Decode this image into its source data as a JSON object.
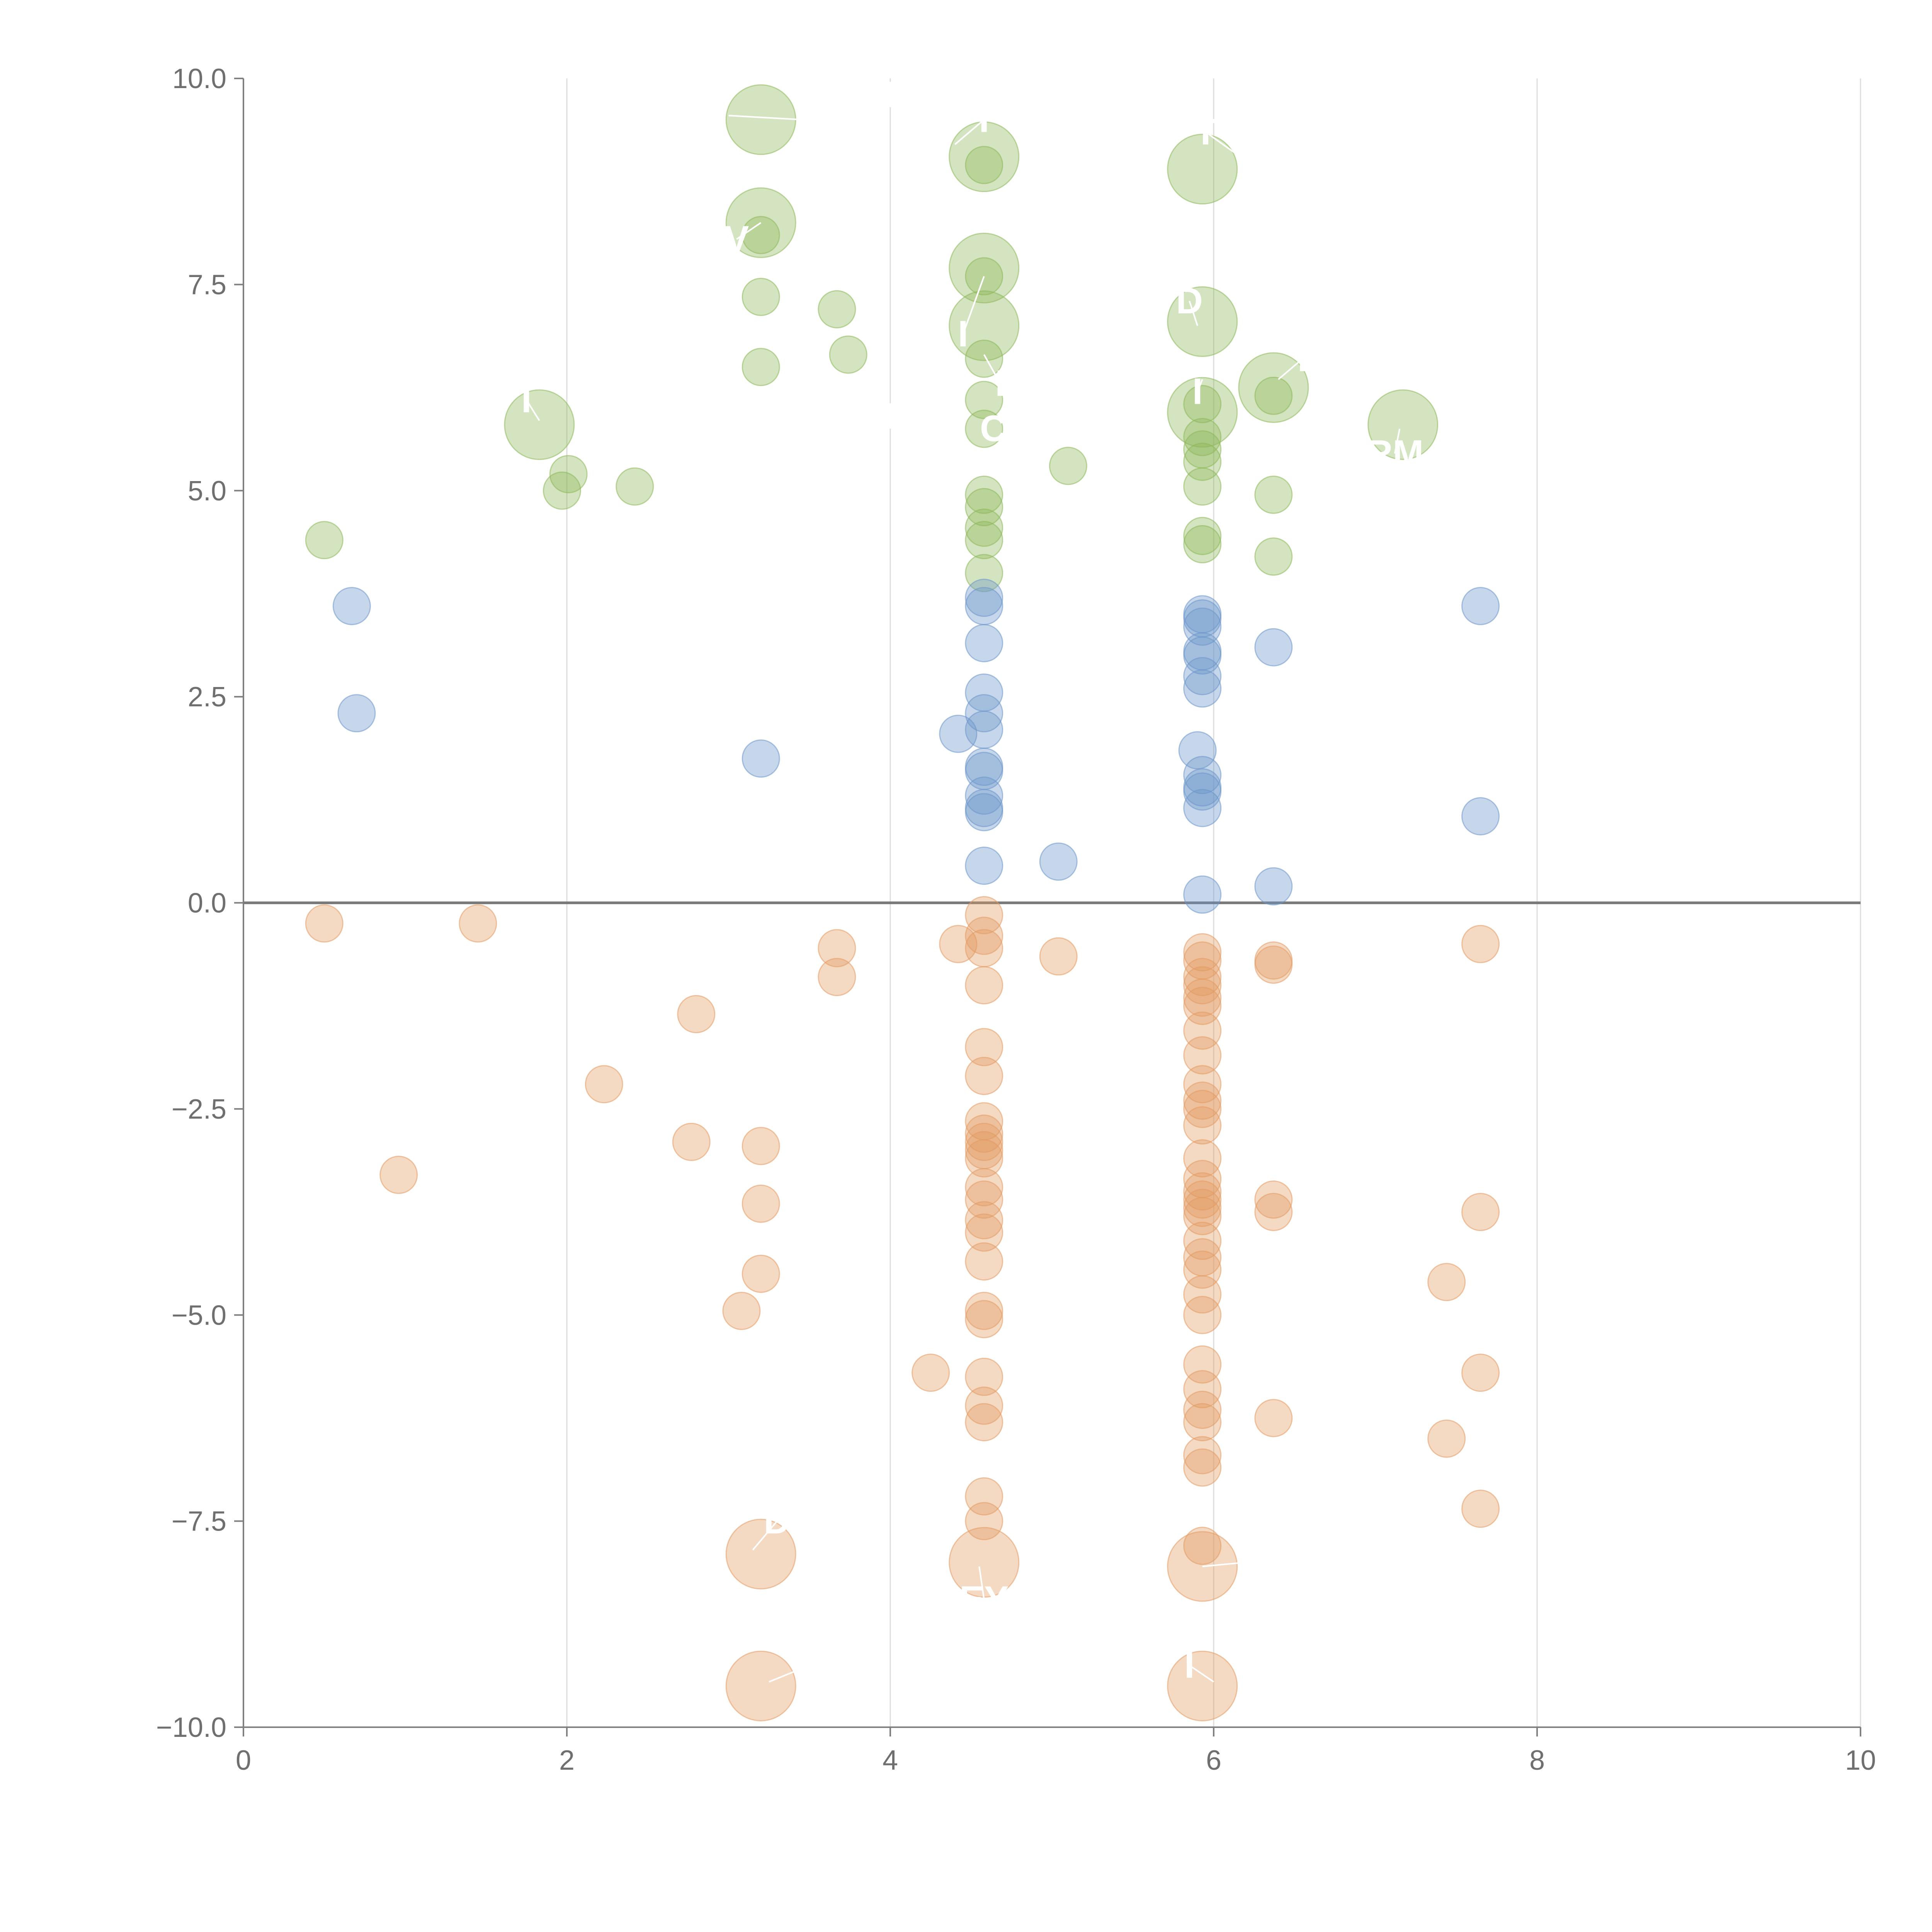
{
  "chart_data": {
    "type": "scatter",
    "variant": "bubble",
    "title": "",
    "xlabel": "",
    "ylabel": "",
    "xlim": [
      0,
      10
    ],
    "ylim": [
      -10,
      10
    ],
    "x_ticks": [
      0,
      2,
      4,
      6,
      8,
      10
    ],
    "x_tick_labels": [
      "0",
      "2",
      "4",
      "6",
      "8",
      "10"
    ],
    "y_ticks": [
      10,
      7.5,
      5,
      2.5,
      0,
      -2.5,
      -5,
      -7.5,
      -10
    ],
    "y_tick_labels": [
      "10.0",
      "7.5",
      "5.0",
      "2.5",
      "0.0",
      "−2.5",
      "−5.0",
      "−7.5",
      "−10.0"
    ],
    "vertical_grid": true,
    "zero_line": true,
    "legend": "none",
    "series": [
      {
        "name": "green",
        "color": "#8db85a",
        "points": [
          [
            0.5,
            4.4,
            1
          ],
          [
            1.97,
            5.0,
            1
          ],
          [
            2.01,
            5.2,
            1
          ],
          [
            2.42,
            5.05,
            1
          ],
          [
            1.83,
            5.8,
            2.2
          ],
          [
            3.2,
            6.5,
            1
          ],
          [
            3.2,
            7.35,
            1
          ],
          [
            3.2,
            8.1,
            1
          ],
          [
            3.2,
            8.25,
            2.2
          ],
          [
            3.2,
            9.5,
            2.2
          ],
          [
            3.67,
            7.2,
            1
          ],
          [
            3.74,
            6.65,
            1
          ],
          [
            4.58,
            9.05,
            2.2
          ],
          [
            4.58,
            8.95,
            1
          ],
          [
            4.58,
            7.7,
            2.2
          ],
          [
            4.58,
            7.6,
            1
          ],
          [
            4.58,
            7.0,
            2.2
          ],
          [
            4.58,
            6.6,
            1
          ],
          [
            4.58,
            6.1,
            1
          ],
          [
            4.58,
            5.75,
            1
          ],
          [
            4.58,
            4.95,
            1
          ],
          [
            4.58,
            4.8,
            1
          ],
          [
            4.58,
            4.55,
            1
          ],
          [
            4.58,
            4.4,
            1
          ],
          [
            4.58,
            4.0,
            1
          ],
          [
            5.1,
            5.3,
            1
          ],
          [
            5.93,
            8.9,
            2.2
          ],
          [
            5.93,
            7.05,
            2.2
          ],
          [
            5.93,
            5.95,
            2.2
          ],
          [
            5.93,
            6.05,
            1
          ],
          [
            5.93,
            5.65,
            1
          ],
          [
            5.93,
            5.5,
            1
          ],
          [
            5.93,
            5.35,
            1
          ],
          [
            5.93,
            5.05,
            1
          ],
          [
            5.93,
            4.45,
            1
          ],
          [
            5.93,
            4.35,
            1
          ],
          [
            6.37,
            6.25,
            2.2
          ],
          [
            6.37,
            6.15,
            1
          ],
          [
            6.37,
            4.95,
            1
          ],
          [
            6.37,
            4.2,
            1
          ],
          [
            7.17,
            5.8,
            2.2
          ]
        ]
      },
      {
        "name": "blue",
        "color": "#6b96cb",
        "points": [
          [
            0.67,
            3.6,
            1
          ],
          [
            0.7,
            2.3,
            1
          ],
          [
            3.2,
            1.75,
            1
          ],
          [
            4.42,
            2.05,
            1
          ],
          [
            4.58,
            3.7,
            1
          ],
          [
            4.58,
            3.6,
            1
          ],
          [
            4.58,
            3.15,
            1
          ],
          [
            4.58,
            2.55,
            1
          ],
          [
            4.58,
            2.3,
            1
          ],
          [
            4.58,
            2.1,
            1
          ],
          [
            4.58,
            1.65,
            1
          ],
          [
            4.58,
            1.6,
            1
          ],
          [
            4.58,
            1.3,
            1
          ],
          [
            4.58,
            1.15,
            1
          ],
          [
            4.58,
            1.1,
            1
          ],
          [
            4.58,
            0.45,
            1
          ],
          [
            5.04,
            0.5,
            1
          ],
          [
            5.93,
            3.5,
            1
          ],
          [
            5.93,
            3.45,
            1
          ],
          [
            5.93,
            3.35,
            1
          ],
          [
            5.93,
            3.05,
            1
          ],
          [
            5.93,
            3.0,
            1
          ],
          [
            5.93,
            2.75,
            1
          ],
          [
            5.93,
            2.6,
            1
          ],
          [
            5.9,
            1.85,
            1
          ],
          [
            5.93,
            1.55,
            1
          ],
          [
            5.93,
            1.4,
            1
          ],
          [
            5.93,
            1.35,
            1
          ],
          [
            5.93,
            1.15,
            1
          ],
          [
            5.93,
            0.1,
            1
          ],
          [
            6.37,
            3.1,
            1
          ],
          [
            6.37,
            0.2,
            1
          ],
          [
            7.65,
            3.6,
            1
          ],
          [
            7.65,
            1.05,
            1
          ]
        ]
      },
      {
        "name": "orange",
        "color": "#e39b62",
        "points": [
          [
            0.5,
            -0.25,
            1
          ],
          [
            1.45,
            -0.25,
            1
          ],
          [
            0.96,
            -3.3,
            1
          ],
          [
            2.23,
            -2.2,
            1
          ],
          [
            2.77,
            -2.9,
            1
          ],
          [
            2.8,
            -1.35,
            1
          ],
          [
            3.08,
            -4.95,
            1
          ],
          [
            3.2,
            -2.95,
            1
          ],
          [
            3.2,
            -3.65,
            1
          ],
          [
            3.2,
            -4.5,
            1
          ],
          [
            3.2,
            -7.9,
            2.2
          ],
          [
            3.2,
            -9.5,
            2.2
          ],
          [
            3.67,
            -0.55,
            1
          ],
          [
            3.67,
            -0.9,
            1
          ],
          [
            4.25,
            -5.7,
            1
          ],
          [
            4.42,
            -0.5,
            1
          ],
          [
            4.58,
            -0.15,
            1
          ],
          [
            4.58,
            -0.4,
            1
          ],
          [
            4.58,
            -0.55,
            1
          ],
          [
            4.58,
            -1.0,
            1
          ],
          [
            4.58,
            -1.75,
            1
          ],
          [
            4.58,
            -2.1,
            1
          ],
          [
            4.58,
            -2.65,
            1
          ],
          [
            4.58,
            -2.8,
            1
          ],
          [
            4.58,
            -2.9,
            1
          ],
          [
            4.58,
            -3.0,
            1
          ],
          [
            4.58,
            -3.1,
            1
          ],
          [
            4.58,
            -3.45,
            1
          ],
          [
            4.58,
            -3.6,
            1
          ],
          [
            4.58,
            -3.85,
            1
          ],
          [
            4.58,
            -4.0,
            1
          ],
          [
            4.58,
            -4.35,
            1
          ],
          [
            4.58,
            -4.95,
            1
          ],
          [
            4.58,
            -5.05,
            1
          ],
          [
            4.58,
            -5.75,
            1
          ],
          [
            4.58,
            -6.1,
            1
          ],
          [
            4.58,
            -6.3,
            1
          ],
          [
            4.58,
            -7.2,
            1
          ],
          [
            4.58,
            -7.5,
            1
          ],
          [
            4.58,
            -8.0,
            2.2
          ],
          [
            5.04,
            -0.65,
            1
          ],
          [
            5.93,
            -0.6,
            1
          ],
          [
            5.93,
            -0.7,
            1
          ],
          [
            5.93,
            -0.9,
            1
          ],
          [
            5.93,
            -1.0,
            1
          ],
          [
            5.93,
            -1.15,
            1
          ],
          [
            5.93,
            -1.25,
            1
          ],
          [
            5.93,
            -1.55,
            1
          ],
          [
            5.93,
            -1.85,
            1
          ],
          [
            5.93,
            -2.2,
            1
          ],
          [
            5.93,
            -2.4,
            1
          ],
          [
            5.93,
            -2.5,
            1
          ],
          [
            5.93,
            -2.7,
            1
          ],
          [
            5.93,
            -3.1,
            1
          ],
          [
            5.93,
            -3.35,
            1
          ],
          [
            5.93,
            -3.5,
            1
          ],
          [
            5.93,
            -3.6,
            1
          ],
          [
            5.93,
            -3.7,
            1
          ],
          [
            5.93,
            -3.8,
            1
          ],
          [
            5.93,
            -4.1,
            1
          ],
          [
            5.93,
            -4.3,
            1
          ],
          [
            5.93,
            -4.45,
            1
          ],
          [
            5.93,
            -4.75,
            1
          ],
          [
            5.93,
            -5.0,
            1
          ],
          [
            5.93,
            -5.6,
            1
          ],
          [
            5.93,
            -5.9,
            1
          ],
          [
            5.93,
            -6.15,
            1
          ],
          [
            5.93,
            -6.3,
            1
          ],
          [
            5.93,
            -6.7,
            1
          ],
          [
            5.93,
            -6.85,
            1
          ],
          [
            5.93,
            -7.8,
            1
          ],
          [
            5.93,
            -8.05,
            2.2
          ],
          [
            5.93,
            -9.5,
            2.2
          ],
          [
            6.37,
            -0.7,
            1
          ],
          [
            6.37,
            -0.75,
            1
          ],
          [
            6.37,
            -3.6,
            1
          ],
          [
            6.37,
            -3.75,
            1
          ],
          [
            6.37,
            -6.25,
            1
          ],
          [
            7.44,
            -4.6,
            1
          ],
          [
            7.44,
            -6.5,
            1
          ],
          [
            7.65,
            -0.5,
            1
          ],
          [
            7.65,
            -3.75,
            1
          ],
          [
            7.65,
            -5.7,
            1
          ],
          [
            7.65,
            -7.35,
            1
          ]
        ]
      }
    ],
    "annotations": [
      {
        "text": "I",
        "x": 3.45,
        "y": 9.5,
        "px": 3.0,
        "py": 9.55
      },
      {
        "text": "I",
        "x": 4.0,
        "y": 9.8
      },
      {
        "text": "I",
        "x": 4.58,
        "y": 9.5,
        "px": 4.4,
        "py": 9.2
      },
      {
        "text": "T",
        "x": 5.95,
        "y": 9.35,
        "px": 6.2,
        "py": 9.0
      },
      {
        "text": "V",
        "x": 3.05,
        "y": 8.05,
        "px": 3.2,
        "py": 8.25
      },
      {
        "text": "D",
        "x": 5.85,
        "y": 7.3,
        "px": 5.9,
        "py": 7.0
      },
      {
        "text": "I",
        "x": 4.45,
        "y": 6.9,
        "px": 4.58,
        "py": 7.6
      },
      {
        "text": "I",
        "x": 4.68,
        "y": 6.3,
        "px": 4.58,
        "py": 6.65
      },
      {
        "text": "I",
        "x": 5.9,
        "y": 6.2,
        "px": 5.93,
        "py": 6.35
      },
      {
        "text": "I",
        "x": 6.55,
        "y": 6.6,
        "px": 6.4,
        "py": 6.35
      },
      {
        "text": "I",
        "x": 1.75,
        "y": 6.1,
        "px": 1.83,
        "py": 5.85
      },
      {
        "text": "I",
        "x": 4.0,
        "y": 5.9
      },
      {
        "text": "CH",
        "x": 4.72,
        "y": 5.75
      },
      {
        "text": "RM",
        "x": 7.12,
        "y": 5.45,
        "px": 7.15,
        "py": 5.75
      },
      {
        "text": "D",
        "x": 3.3,
        "y": -7.5,
        "px": 3.15,
        "py": -7.85
      },
      {
        "text": "EY",
        "x": 4.58,
        "y": -8.45,
        "px": 4.55,
        "py": -8.05
      },
      {
        "text": "I",
        "x": 6.2,
        "y": -8.0,
        "px": 5.93,
        "py": -8.05
      },
      {
        "text": "I",
        "x": 3.5,
        "y": -9.25,
        "px": 3.25,
        "py": -9.45
      },
      {
        "text": "I",
        "x": 5.85,
        "y": -9.25,
        "px": 6.0,
        "py": -9.45
      }
    ]
  }
}
